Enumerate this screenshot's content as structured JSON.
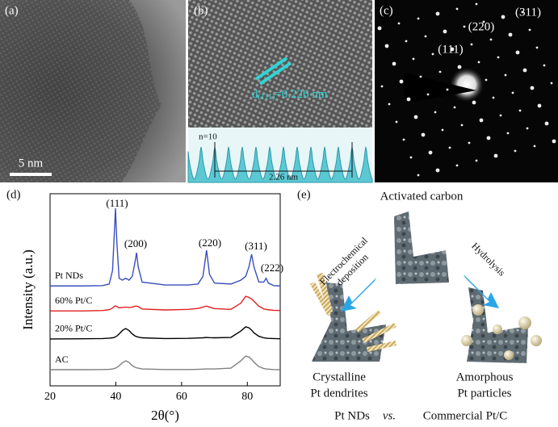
{
  "panels": {
    "a": {
      "label": "(a)",
      "scale_bar": "5 nm"
    },
    "b": {
      "label": "(b)",
      "d_symbol": "d",
      "d_index": "(111)",
      "d_value": "=0.226 nm",
      "profile_count": "n=10",
      "profile_length": "2.26 nm"
    },
    "c": {
      "label": "(c)",
      "spots": [
        "(111)",
        "(220)",
        "(311)"
      ]
    },
    "d": {
      "label": "(d)"
    },
    "e": {
      "label": "(e)",
      "start": "Activated carbon",
      "left_arrow": [
        "Electrochemical",
        "deposition"
      ],
      "right_arrow": "Hydrolysis",
      "left_product": [
        "Crystalline",
        "Pt dendrites"
      ],
      "right_product": [
        "Amorphous",
        "Pt particles"
      ],
      "footer": [
        "Pt NDs",
        "vs.",
        "Commercial Pt/C"
      ]
    }
  },
  "chart_data": {
    "type": "line",
    "xlabel": "2θ(°)",
    "ylabel": "Intensity (a.u.)",
    "xlim": [
      20,
      90
    ],
    "xticks": [
      20,
      40,
      60,
      80
    ],
    "ylim": [
      0,
      100
    ],
    "annotations": [
      "(111)",
      "(200)",
      "(220)",
      "(311)",
      "(222)"
    ],
    "x": [
      20,
      30,
      36,
      38,
      39,
      39.5,
      39.9,
      40.3,
      41,
      42,
      43,
      44,
      45,
      45.8,
      46.3,
      46.8,
      48,
      55,
      62,
      65,
      66.5,
      67.6,
      68.5,
      70,
      75,
      78,
      79.5,
      80.5,
      81.3,
      82,
      83.5,
      85,
      85.7,
      86.4,
      88,
      90
    ],
    "series": [
      {
        "name": "Pt NDs",
        "color": "#3a4fbf",
        "values": [
          52,
          52,
          52.2,
          53,
          60,
          78,
          92.4,
          75,
          56,
          55,
          56,
          55,
          57,
          64,
          69.3,
          62,
          54,
          52.5,
          52.5,
          53,
          57,
          70.6,
          58,
          53.5,
          53,
          55,
          57,
          62,
          68.5,
          62,
          54,
          54,
          56,
          53.5,
          52.2,
          52
        ]
      },
      {
        "name": "60% Pt/C",
        "color": "#e02020",
        "values": [
          39,
          39,
          39.2,
          39.6,
          40.5,
          41.3,
          41.6,
          41.3,
          40.6,
          40.8,
          41,
          40.8,
          41,
          41.4,
          41.5,
          41.2,
          40,
          39.5,
          39.8,
          40.3,
          41,
          41.5,
          41,
          40.2,
          39.8,
          43,
          46.6,
          46,
          45.2,
          44,
          41.5,
          40,
          39.8,
          39.6,
          39.3,
          39.2
        ]
      },
      {
        "name": "20% Pt/C",
        "color": "#000000",
        "values": [
          24.4,
          24.5,
          24.6,
          24.8,
          25,
          25.2,
          25.5,
          25.9,
          27,
          28.8,
          29.8,
          28.8,
          27,
          26,
          25.6,
          25.4,
          25,
          24.6,
          24.7,
          24.9,
          25,
          25.2,
          25.1,
          25,
          25.2,
          28.5,
          30.7,
          30.2,
          29,
          27.6,
          25.8,
          25,
          24.8,
          24.7,
          24.6,
          24.5
        ]
      },
      {
        "name": "AC",
        "color": "#808080",
        "values": [
          8.4,
          8.4,
          8.5,
          8.6,
          8.8,
          9,
          9.2,
          9.6,
          10.4,
          12,
          13,
          12.2,
          10.5,
          9.7,
          9.4,
          9.2,
          8.8,
          8.5,
          8.5,
          8.6,
          8.7,
          8.8,
          8.8,
          8.8,
          9.2,
          13,
          15.5,
          15,
          13.8,
          12.3,
          10,
          9,
          8.8,
          8.7,
          8.5,
          8.4
        ]
      }
    ]
  }
}
